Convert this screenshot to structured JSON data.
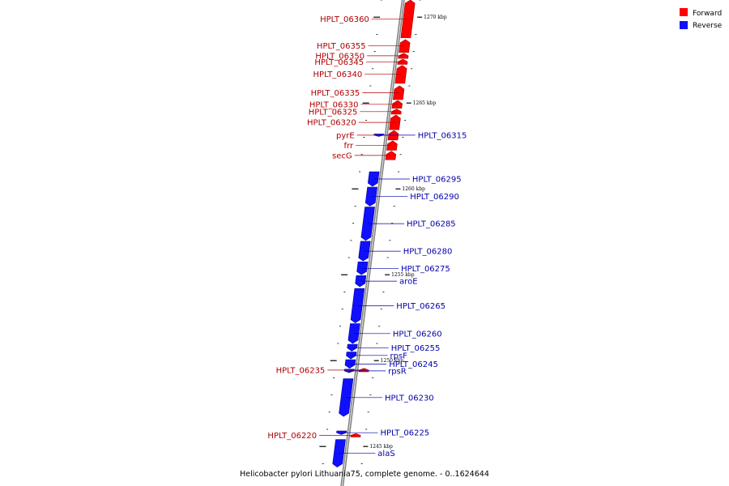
{
  "legend": {
    "forward_label": "Forward",
    "reverse_label": "Reverse",
    "forward_color": "#ff0000",
    "reverse_color": "#1010ff"
  },
  "label_colors": {
    "forward": "#b00000",
    "reverse": "#0000aa"
  },
  "caption": "Helicobacter pylori Lithuania75, complete genome. - 0..1624644",
  "map": {
    "start_kbp": 1244,
    "end_kbp": 1271,
    "major_ticks": [
      "1270 kbp",
      "1265 kbp",
      "1260 kbp",
      "1255 kbp",
      "1250 kbp",
      "1245 kbp"
    ],
    "minor_tick_interval_kbp": 1
  },
  "genes": [
    {
      "name": "HPLT_06360",
      "strand": "forward",
      "start_kbp": 1268.8,
      "end_kbp": 1271.0
    },
    {
      "name": "HPLT_06355",
      "strand": "forward",
      "start_kbp": 1267.95,
      "end_kbp": 1268.7
    },
    {
      "name": "HPLT_06350",
      "strand": "forward",
      "start_kbp": 1267.6,
      "end_kbp": 1267.9
    },
    {
      "name": "HPLT_06345",
      "strand": "forward",
      "start_kbp": 1267.25,
      "end_kbp": 1267.55
    },
    {
      "name": "HPLT_06340",
      "strand": "forward",
      "start_kbp": 1266.15,
      "end_kbp": 1267.2
    },
    {
      "name": "HPLT_06335",
      "strand": "forward",
      "start_kbp": 1265.2,
      "end_kbp": 1266.0
    },
    {
      "name": "HPLT_06330",
      "strand": "forward",
      "start_kbp": 1264.7,
      "end_kbp": 1265.15
    },
    {
      "name": "HPLT_06325",
      "strand": "forward",
      "start_kbp": 1264.35,
      "end_kbp": 1264.65
    },
    {
      "name": "HPLT_06320",
      "strand": "forward",
      "start_kbp": 1263.45,
      "end_kbp": 1264.3
    },
    {
      "name": "pyrE",
      "strand": "forward",
      "start_kbp": 1262.85,
      "end_kbp": 1263.4
    },
    {
      "name": "frr",
      "strand": "forward",
      "start_kbp": 1262.25,
      "end_kbp": 1262.8
    },
    {
      "name": "secG",
      "strand": "forward",
      "start_kbp": 1261.7,
      "end_kbp": 1262.2
    },
    {
      "name": "HPLT_06315",
      "strand": "reverse",
      "start_kbp": 1263.05,
      "end_kbp": 1263.2
    },
    {
      "name": "HPLT_06295",
      "strand": "reverse",
      "start_kbp": 1260.15,
      "end_kbp": 1261.0
    },
    {
      "name": "HPLT_06290",
      "strand": "reverse",
      "start_kbp": 1259.0,
      "end_kbp": 1260.1
    },
    {
      "name": "HPLT_06285",
      "strand": "reverse",
      "start_kbp": 1257.0,
      "end_kbp": 1258.95
    },
    {
      "name": "HPLT_06280",
      "strand": "reverse",
      "start_kbp": 1255.8,
      "end_kbp": 1256.95
    },
    {
      "name": "HPLT_06275",
      "strand": "reverse",
      "start_kbp": 1255.0,
      "end_kbp": 1255.75
    },
    {
      "name": "aroE",
      "strand": "reverse",
      "start_kbp": 1254.3,
      "end_kbp": 1254.95
    },
    {
      "name": "HPLT_06265",
      "strand": "reverse",
      "start_kbp": 1252.2,
      "end_kbp": 1254.2
    },
    {
      "name": "HPLT_06260",
      "strand": "reverse",
      "start_kbp": 1251.0,
      "end_kbp": 1252.15
    },
    {
      "name": "HPLT_06255",
      "strand": "reverse",
      "start_kbp": 1250.55,
      "end_kbp": 1250.95
    },
    {
      "name": "rpsF",
      "strand": "reverse",
      "start_kbp": 1250.1,
      "end_kbp": 1250.5
    },
    {
      "name": "HPLT_06245",
      "strand": "reverse",
      "start_kbp": 1249.55,
      "end_kbp": 1250.05
    },
    {
      "name": "rpsR",
      "strand": "reverse",
      "start_kbp": 1249.3,
      "end_kbp": 1249.5
    },
    {
      "name": "HPLT_06235",
      "strand": "forward",
      "start_kbp": 1249.35,
      "end_kbp": 1249.55
    },
    {
      "name": "HPLT_06230",
      "strand": "reverse",
      "start_kbp": 1246.75,
      "end_kbp": 1248.95
    },
    {
      "name": "HPLT_06220",
      "strand": "forward",
      "start_kbp": 1245.55,
      "end_kbp": 1245.75
    },
    {
      "name": "HPLT_06225",
      "strand": "reverse",
      "start_kbp": 1245.7,
      "end_kbp": 1245.9
    },
    {
      "name": "alaS",
      "strand": "reverse",
      "start_kbp": 1243.8,
      "end_kbp": 1245.4
    }
  ]
}
